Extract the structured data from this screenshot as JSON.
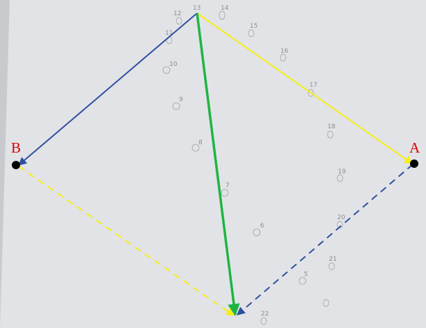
{
  "points": [
    {
      "id": "A",
      "label": "A",
      "color": "#d50000"
    },
    {
      "id": "B",
      "label": "B",
      "color": "#d50000"
    }
  ],
  "handwritten_marks": [
    "12",
    "13",
    "14",
    "15",
    "11",
    "10",
    "16",
    "17",
    "9",
    "18",
    "8",
    "19",
    "7",
    "20",
    "6",
    "21",
    "5",
    "22"
  ],
  "colors": {
    "paper": "#e2e3e6",
    "blue_arrow": "#2e4ea0",
    "yellow_arrow": "#f4ee1a",
    "green_arrow": "#1db542",
    "point": "#000000"
  }
}
